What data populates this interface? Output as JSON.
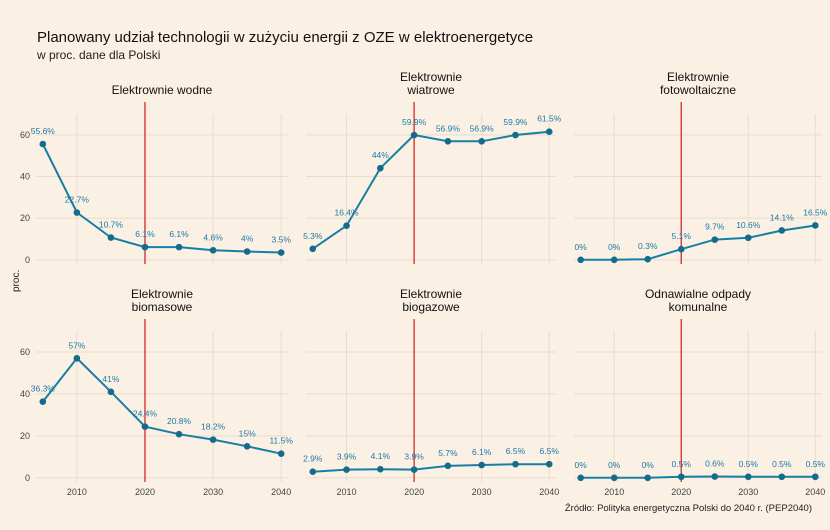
{
  "title": "Planowany udział technologii w zużyciu energii z OZE w elektroenergetyce",
  "subtitle": "w proc. dane dla Polski",
  "ylabel": "proc.",
  "source": "Źródło: Polityka energetyczna Polski do 2040 r. (PEP2040)",
  "colors": {
    "line": "#177fa4",
    "point": "#146c8c",
    "label": "#1a7aa8",
    "vline": "#d62a2a",
    "grid": "#eadccd",
    "background": "#fbf0e4"
  },
  "chart_data": {
    "type": "line",
    "facets": "2x3",
    "x": [
      2005,
      2010,
      2015,
      2020,
      2025,
      2030,
      2035,
      2040
    ],
    "x_ticks": [
      2010,
      2020,
      2030,
      2040
    ],
    "y_ticks": [
      0,
      20,
      40,
      60
    ],
    "ylim": [
      -2,
      70
    ],
    "xlim": [
      2004,
      2041
    ],
    "reference_line_x": 2020,
    "grid": true,
    "panels": [
      {
        "title": [
          "Elektrownie wodne"
        ],
        "values": [
          55.6,
          22.7,
          10.7,
          6.1,
          6.1,
          4.6,
          4,
          3.5
        ],
        "labels": [
          "55.6%",
          "22.7%",
          "10.7%",
          "6.1%",
          "6.1%",
          "4.6%",
          "4%",
          "3.5%"
        ]
      },
      {
        "title": [
          "Elektrownie",
          "wiatrowe"
        ],
        "values": [
          5.3,
          16.4,
          44,
          59.9,
          56.9,
          56.9,
          59.9,
          61.5
        ],
        "labels": [
          "5.3%",
          "16.4%",
          "44%",
          "59.9%",
          "56.9%",
          "56.9%",
          "59.9%",
          "61.5%"
        ]
      },
      {
        "title": [
          "Elektrownie",
          "fotowoltaiczne"
        ],
        "values": [
          0,
          0,
          0.3,
          5.1,
          9.7,
          10.6,
          14.1,
          16.5
        ],
        "labels": [
          "0%",
          "0%",
          "0.3%",
          "5.1%",
          "9.7%",
          "10.6%",
          "14.1%",
          "16.5%"
        ]
      },
      {
        "title": [
          "Elektrownie",
          "biomasowe"
        ],
        "values": [
          36.3,
          57,
          41,
          24.4,
          20.8,
          18.2,
          15,
          11.5
        ],
        "labels": [
          "36.3%",
          "57%",
          "41%",
          "24.4%",
          "20.8%",
          "18.2%",
          "15%",
          "11.5%"
        ]
      },
      {
        "title": [
          "Elektrownie",
          "biogazowe"
        ],
        "values": [
          2.9,
          3.9,
          4.1,
          3.9,
          5.7,
          6.1,
          6.5,
          6.5
        ],
        "labels": [
          "2.9%",
          "3.9%",
          "4.1%",
          "3.9%",
          "5.7%",
          "6.1%",
          "6.5%",
          "6.5%"
        ]
      },
      {
        "title": [
          "Odnawialne odpady",
          "komunalne"
        ],
        "values": [
          0,
          0,
          0,
          0.5,
          0.6,
          0.5,
          0.5,
          0.5
        ],
        "labels": [
          "0%",
          "0%",
          "0%",
          "0.5%",
          "0.6%",
          "0.5%",
          "0.5%",
          "0.5%"
        ]
      }
    ]
  }
}
